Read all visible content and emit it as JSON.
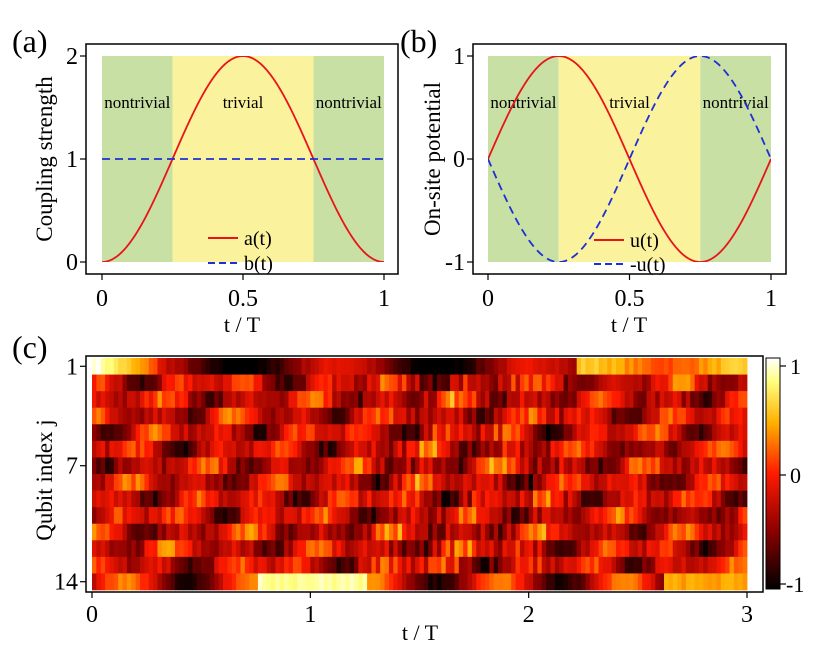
{
  "colors": {
    "nontrivial_region": "#c8e0a4",
    "trivial_region": "#fbf29d",
    "red_curve": "#e8141a",
    "blue_curve": "#1f2fd6"
  },
  "chart_data": [
    {
      "type": "line",
      "panel_label": "(a)",
      "xlabel": "t / T",
      "ylabel": "Coupling strength",
      "xlim": [
        0,
        1
      ],
      "ylim": [
        0,
        2
      ],
      "xticks": [
        "0",
        "0.5",
        "1"
      ],
      "yticks": [
        "0",
        "1",
        "2"
      ],
      "regions": [
        {
          "label": "nontrivial",
          "x0": 0,
          "x1": 0.25,
          "kind": "nontrivial"
        },
        {
          "label": "trivial",
          "x0": 0.25,
          "x1": 0.75,
          "kind": "trivial"
        },
        {
          "label": "nontrivial",
          "x0": 0.75,
          "x1": 1,
          "kind": "nontrivial"
        }
      ],
      "x": [
        0,
        0.125,
        0.25,
        0.375,
        0.5,
        0.625,
        0.75,
        0.875,
        1
      ],
      "series": [
        {
          "name": "a(t)",
          "style": "solid",
          "color": "#e8141a",
          "values": [
            0,
            0.293,
            1,
            1.707,
            2,
            1.707,
            1,
            0.293,
            0
          ]
        },
        {
          "name": "b(t)",
          "style": "dashed",
          "color": "#1f2fd6",
          "values": [
            1,
            1,
            1,
            1,
            1,
            1,
            1,
            1,
            1
          ]
        }
      ],
      "legend_position": "bottom-center"
    },
    {
      "type": "line",
      "panel_label": "(b)",
      "xlabel": "t / T",
      "ylabel": "On-site potential",
      "xlim": [
        0,
        1
      ],
      "ylim": [
        -1,
        1
      ],
      "xticks": [
        "0",
        "0.5",
        "1"
      ],
      "yticks": [
        "-1",
        "0",
        "1"
      ],
      "regions": [
        {
          "label": "nontrivial",
          "x0": 0,
          "x1": 0.25,
          "kind": "nontrivial"
        },
        {
          "label": "trivial",
          "x0": 0.25,
          "x1": 0.75,
          "kind": "trivial"
        },
        {
          "label": "nontrivial",
          "x0": 0.75,
          "x1": 1,
          "kind": "nontrivial"
        }
      ],
      "x": [
        0,
        0.125,
        0.25,
        0.375,
        0.5,
        0.625,
        0.75,
        0.875,
        1
      ],
      "series": [
        {
          "name": "u(t)",
          "style": "solid",
          "color": "#e8141a",
          "values": [
            0,
            0.707,
            1,
            0.707,
            0,
            -0.707,
            -1,
            -0.707,
            0
          ]
        },
        {
          "name": "-u(t)",
          "style": "dashed",
          "color": "#1f2fd6",
          "values": [
            0,
            -0.707,
            -1,
            -0.707,
            0,
            0.707,
            1,
            0.707,
            0
          ]
        }
      ],
      "legend_position": "bottom-center"
    },
    {
      "type": "heatmap",
      "panel_label": "(c)",
      "xlabel": "t / T",
      "ylabel": "Qubit index j",
      "xlim": [
        0,
        3
      ],
      "rows": 14,
      "xticks": [
        "0",
        "1",
        "2",
        "3"
      ],
      "yticks": [
        "1",
        "7",
        "14"
      ],
      "colorbar": {
        "min": -1,
        "max": 1,
        "ticks": [
          "1",
          "0",
          "-1"
        ]
      },
      "colormap": [
        "#000000",
        "#8a0000",
        "#ff1a00",
        "#ffb000",
        "#ffff80",
        "#ffffff"
      ]
    }
  ]
}
